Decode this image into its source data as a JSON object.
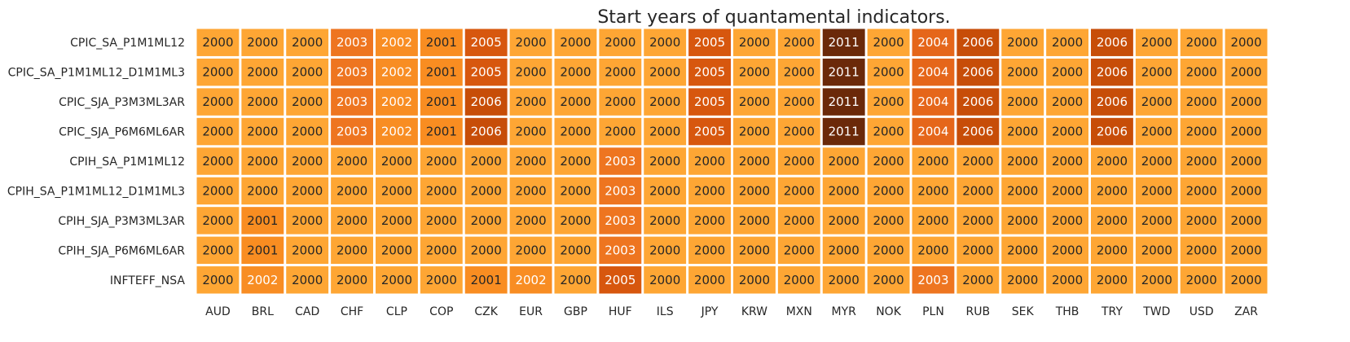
{
  "chart_data": {
    "type": "heatmap",
    "title": "Start years of quantamental indicators.",
    "xlabel": "",
    "ylabel": "",
    "legend": "none",
    "grid": false,
    "columns": [
      "AUD",
      "BRL",
      "CAD",
      "CHF",
      "CLP",
      "COP",
      "CZK",
      "EUR",
      "GBP",
      "HUF",
      "ILS",
      "JPY",
      "KRW",
      "MXN",
      "MYR",
      "NOK",
      "PLN",
      "RUB",
      "SEK",
      "THB",
      "TRY",
      "TWD",
      "USD",
      "ZAR"
    ],
    "rows": [
      "CPIC_SA_P1M1ML12",
      "CPIC_SA_P1M1ML12_D1M1ML3",
      "CPIC_SJA_P3M3ML3AR",
      "CPIC_SJA_P6M6ML6AR",
      "CPIH_SA_P1M1ML12",
      "CPIH_SA_P1M1ML12_D1M1ML3",
      "CPIH_SJA_P3M3ML3AR",
      "CPIH_SJA_P6M6ML6AR",
      "INFTEFF_NSA"
    ],
    "values": [
      [
        2000,
        2000,
        2000,
        2003,
        2002,
        2001,
        2005,
        2000,
        2000,
        2000,
        2000,
        2005,
        2000,
        2000,
        2011,
        2000,
        2004,
        2006,
        2000,
        2000,
        2006,
        2000,
        2000,
        2000
      ],
      [
        2000,
        2000,
        2000,
        2003,
        2002,
        2001,
        2005,
        2000,
        2000,
        2000,
        2000,
        2005,
        2000,
        2000,
        2011,
        2000,
        2004,
        2006,
        2000,
        2000,
        2006,
        2000,
        2000,
        2000
      ],
      [
        2000,
        2000,
        2000,
        2003,
        2002,
        2001,
        2006,
        2000,
        2000,
        2000,
        2000,
        2005,
        2000,
        2000,
        2011,
        2000,
        2004,
        2006,
        2000,
        2000,
        2006,
        2000,
        2000,
        2000
      ],
      [
        2000,
        2000,
        2000,
        2003,
        2002,
        2001,
        2006,
        2000,
        2000,
        2000,
        2000,
        2005,
        2000,
        2000,
        2011,
        2000,
        2004,
        2006,
        2000,
        2000,
        2006,
        2000,
        2000,
        2000
      ],
      [
        2000,
        2000,
        2000,
        2000,
        2000,
        2000,
        2000,
        2000,
        2000,
        2003,
        2000,
        2000,
        2000,
        2000,
        2000,
        2000,
        2000,
        2000,
        2000,
        2000,
        2000,
        2000,
        2000,
        2000
      ],
      [
        2000,
        2000,
        2000,
        2000,
        2000,
        2000,
        2000,
        2000,
        2000,
        2003,
        2000,
        2000,
        2000,
        2000,
        2000,
        2000,
        2000,
        2000,
        2000,
        2000,
        2000,
        2000,
        2000,
        2000
      ],
      [
        2000,
        2001,
        2000,
        2000,
        2000,
        2000,
        2000,
        2000,
        2000,
        2003,
        2000,
        2000,
        2000,
        2000,
        2000,
        2000,
        2000,
        2000,
        2000,
        2000,
        2000,
        2000,
        2000,
        2000
      ],
      [
        2000,
        2001,
        2000,
        2000,
        2000,
        2000,
        2000,
        2000,
        2000,
        2003,
        2000,
        2000,
        2000,
        2000,
        2000,
        2000,
        2000,
        2000,
        2000,
        2000,
        2000,
        2000,
        2000,
        2000
      ],
      [
        2000,
        2002,
        2000,
        2000,
        2000,
        2000,
        2001,
        2002,
        2000,
        2005,
        2000,
        2000,
        2000,
        2000,
        2000,
        2000,
        2003,
        2000,
        2000,
        2000,
        2000,
        2000,
        2000,
        2000
      ]
    ],
    "color_scale": {
      "2000": "#fea634",
      "2001": "#f98d21",
      "2002": "#f88d23",
      "2003": "#ee7520",
      "2004": "#e5661a",
      "2005": "#d7570e",
      "2006": "#c74d08",
      "2011": "#6b2909"
    },
    "text_colors": {
      "dark": "#262626",
      "light": "#ffffff"
    }
  }
}
